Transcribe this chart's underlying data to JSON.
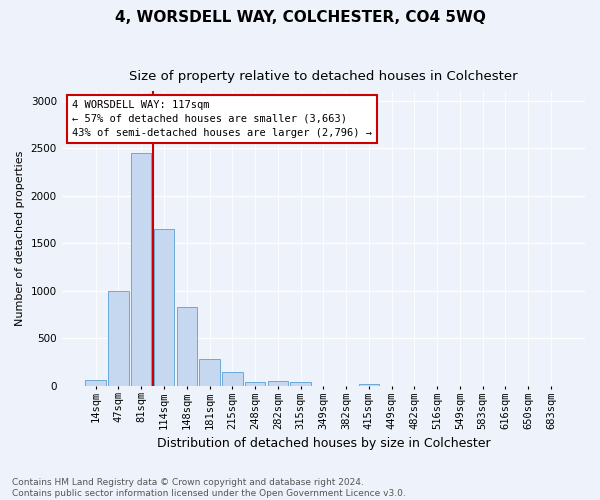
{
  "title": "4, WORSDELL WAY, COLCHESTER, CO4 5WQ",
  "subtitle": "Size of property relative to detached houses in Colchester",
  "xlabel": "Distribution of detached houses by size in Colchester",
  "ylabel": "Number of detached properties",
  "bin_labels": [
    "14sqm",
    "47sqm",
    "81sqm",
    "114sqm",
    "148sqm",
    "181sqm",
    "215sqm",
    "248sqm",
    "282sqm",
    "315sqm",
    "349sqm",
    "382sqm",
    "415sqm",
    "449sqm",
    "482sqm",
    "516sqm",
    "549sqm",
    "583sqm",
    "616sqm",
    "650sqm",
    "683sqm"
  ],
  "bar_values": [
    55,
    1000,
    2450,
    1650,
    830,
    280,
    145,
    40,
    45,
    35,
    0,
    0,
    20,
    0,
    0,
    0,
    0,
    0,
    0,
    0,
    0
  ],
  "bar_color": "#c5d8f0",
  "bar_edge_color": "#5a9fd4",
  "vline_bin_index": 3,
  "vline_color": "#cc0000",
  "annotation_text": "4 WORSDELL WAY: 117sqm\n← 57% of detached houses are smaller (3,663)\n43% of semi-detached houses are larger (2,796) →",
  "annotation_box_color": "#ffffff",
  "annotation_box_edge_color": "#cc0000",
  "ylim": [
    0,
    3100
  ],
  "yticks": [
    0,
    500,
    1000,
    1500,
    2000,
    2500,
    3000
  ],
  "footer_text": "Contains HM Land Registry data © Crown copyright and database right 2024.\nContains public sector information licensed under the Open Government Licence v3.0.",
  "bg_color": "#eef2fa",
  "plot_bg_color": "#eef2fa",
  "title_fontsize": 11,
  "subtitle_fontsize": 9.5,
  "xlabel_fontsize": 9,
  "ylabel_fontsize": 8,
  "tick_fontsize": 7.5,
  "footer_fontsize": 6.5,
  "annotation_fontsize": 7.5
}
